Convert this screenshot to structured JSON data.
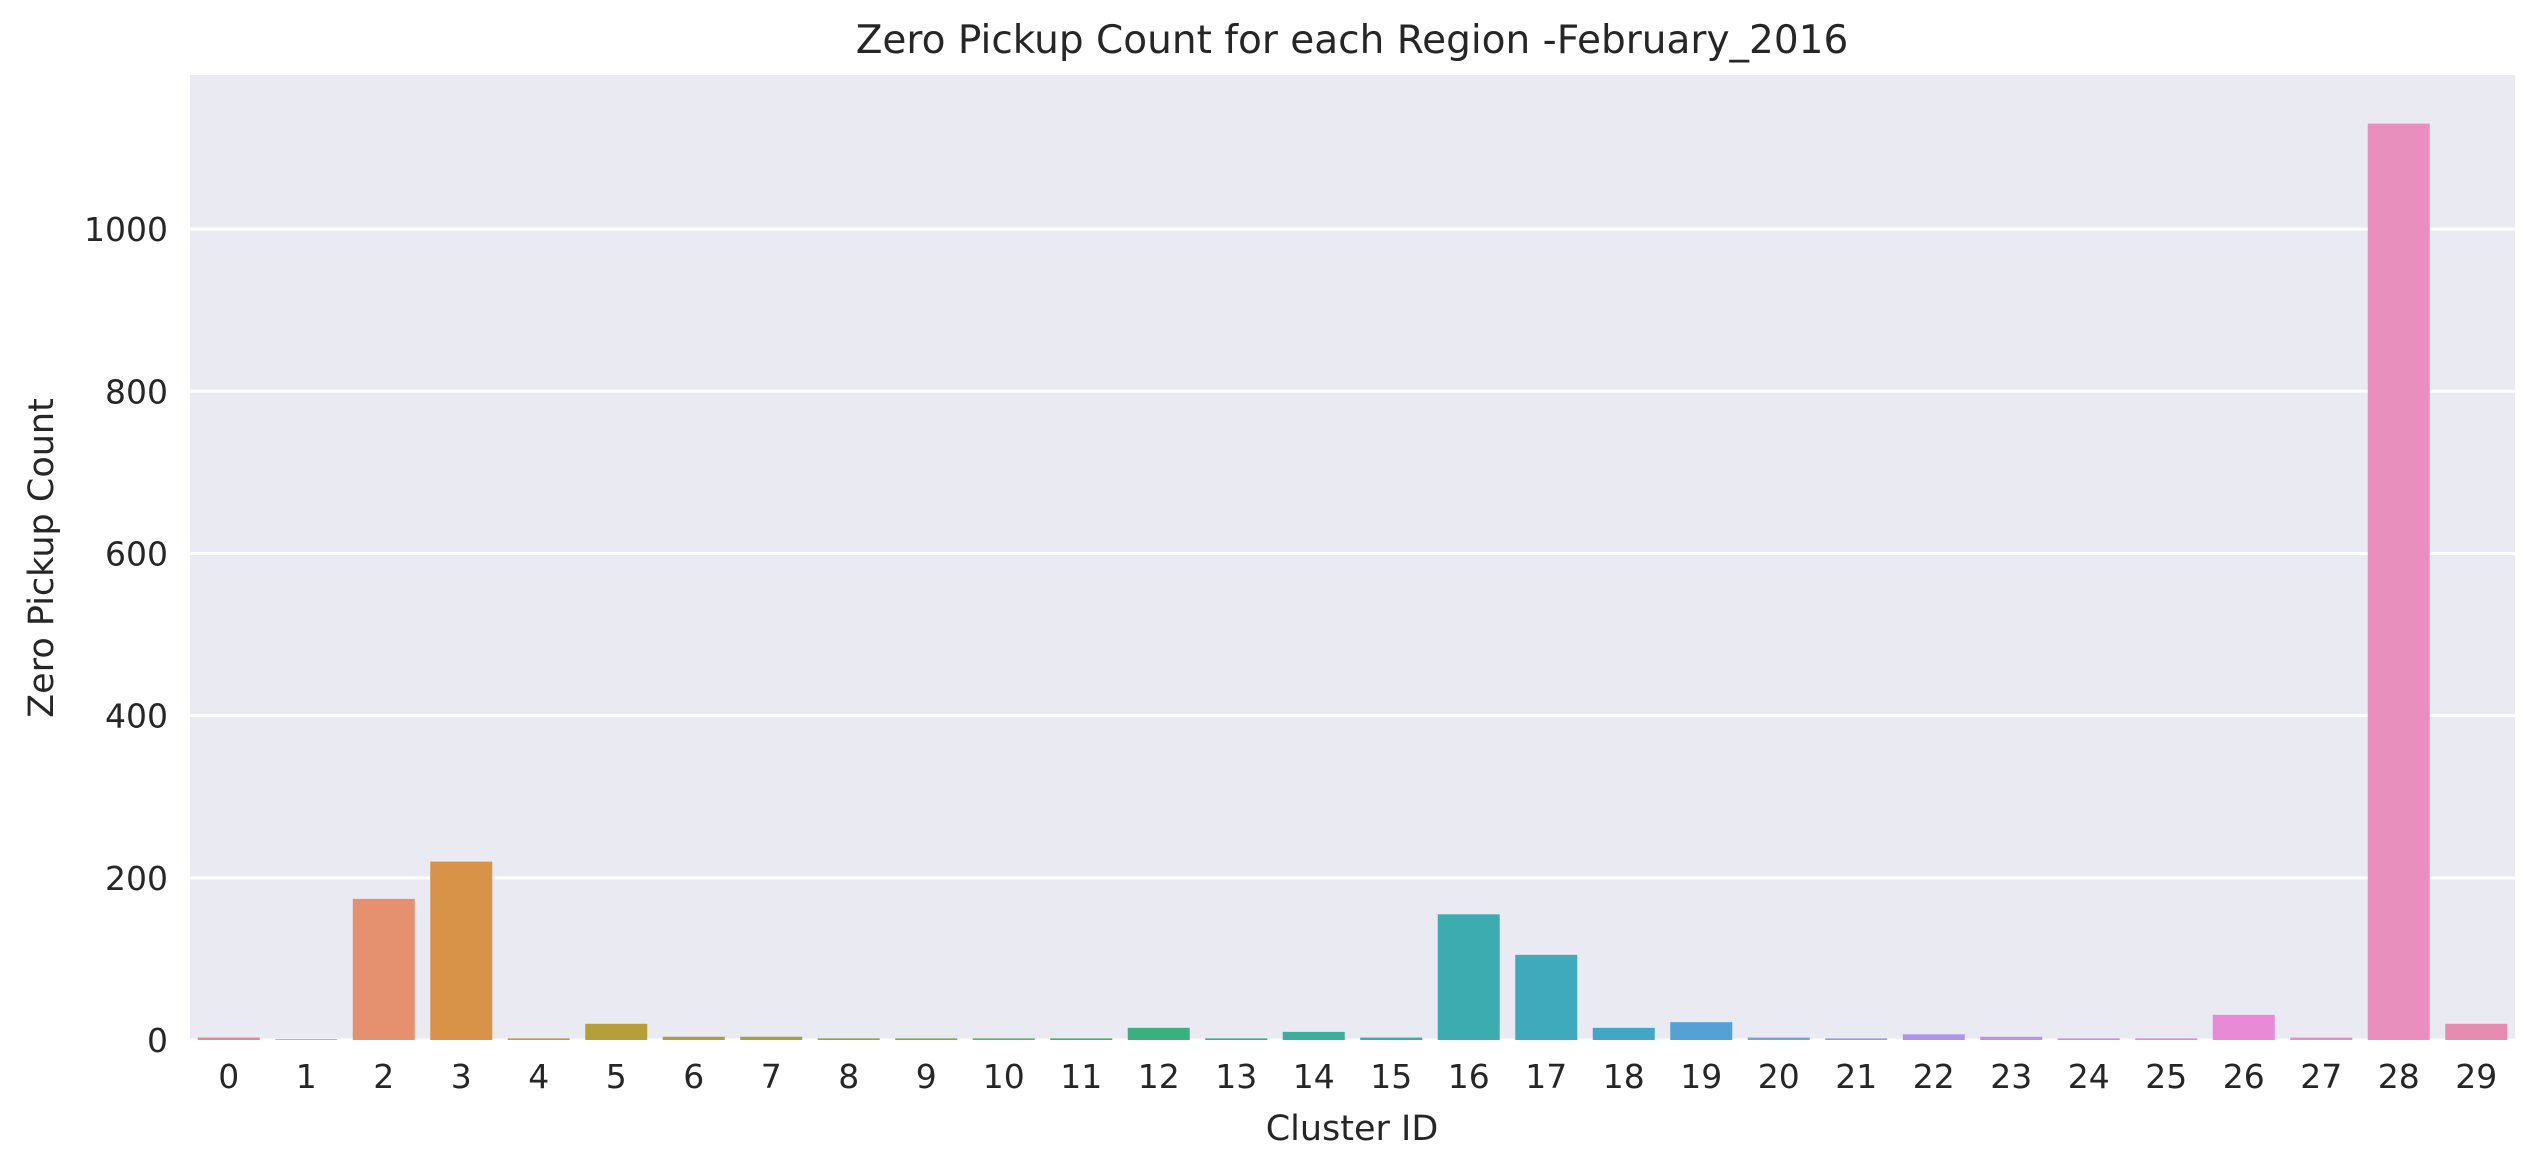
{
  "chart_data": {
    "type": "bar",
    "title": "Zero Pickup Count for each Region -February_2016",
    "xlabel": "Cluster ID",
    "ylabel": "Zero Pickup Count",
    "categories": [
      "0",
      "1",
      "2",
      "3",
      "4",
      "5",
      "6",
      "7",
      "8",
      "9",
      "10",
      "11",
      "12",
      "13",
      "14",
      "15",
      "16",
      "17",
      "18",
      "19",
      "20",
      "21",
      "22",
      "23",
      "24",
      "25",
      "26",
      "27",
      "28",
      "29"
    ],
    "values": [
      3,
      1,
      174,
      220,
      2,
      20,
      4,
      4,
      2,
      2,
      2,
      2,
      15,
      2,
      10,
      3,
      155,
      105,
      15,
      22,
      3,
      2,
      7,
      4,
      2,
      2,
      31,
      3,
      1130,
      20
    ],
    "ylim": [
      0,
      1190
    ],
    "yticks": [
      0,
      200,
      400,
      600,
      800,
      1000
    ],
    "grid": true,
    "colors": [
      "#e8829a",
      "#e68a7b",
      "#e5906f",
      "#d89348",
      "#c7993d",
      "#b59f3a",
      "#a9a23b",
      "#9ca63c",
      "#8ca93d",
      "#7bac45",
      "#5db45d",
      "#43b46f",
      "#3ab07f",
      "#3aaf8f",
      "#3baf9b",
      "#3caea6",
      "#3dacb0",
      "#3eaabb",
      "#42a6c6",
      "#52a2d6",
      "#79a0e0",
      "#9a9ae7",
      "#ad95ea",
      "#bf90ea",
      "#ce8ce8",
      "#df88e3",
      "#e88ad6",
      "#e98dc9",
      "#e88fbd",
      "#e68cb0"
    ]
  }
}
